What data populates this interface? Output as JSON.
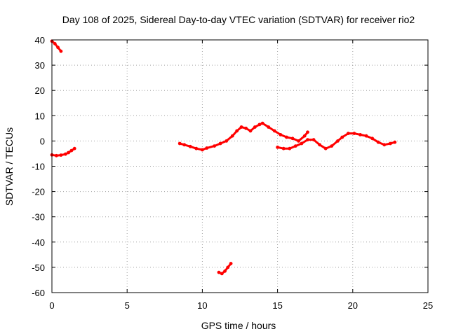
{
  "chart_data": {
    "type": "scatter",
    "title": "Day 108 of 2025, Sidereal Day-to-day VTEC variation (SDTVAR) for receiver rio2",
    "xlabel": "GPS time / hours",
    "ylabel": "SDTVAR / TECUs",
    "xlim": [
      0,
      25
    ],
    "ylim": [
      -60,
      40
    ],
    "x_ticks": [
      0,
      5,
      10,
      15,
      20,
      25
    ],
    "y_ticks": [
      40,
      30,
      20,
      10,
      0,
      -10,
      -20,
      -30,
      -40,
      -50,
      -60
    ],
    "grid": true,
    "series_color": "#ff0000",
    "series": [
      {
        "name": "segment-1",
        "points": [
          [
            0.0,
            39.5
          ],
          [
            0.2,
            38.5
          ],
          [
            0.4,
            37.0
          ],
          [
            0.6,
            35.5
          ]
        ]
      },
      {
        "name": "segment-2",
        "points": [
          [
            0.0,
            -5.5
          ],
          [
            0.3,
            -5.8
          ],
          [
            0.6,
            -5.6
          ],
          [
            0.9,
            -5.2
          ],
          [
            1.1,
            -4.6
          ],
          [
            1.3,
            -3.8
          ],
          [
            1.5,
            -3.0
          ]
        ]
      },
      {
        "name": "segment-3",
        "points": [
          [
            8.5,
            -1.0
          ],
          [
            8.8,
            -1.5
          ],
          [
            9.2,
            -2.2
          ],
          [
            9.6,
            -3.0
          ],
          [
            10.0,
            -3.5
          ],
          [
            10.3,
            -2.8
          ],
          [
            10.8,
            -2.0
          ],
          [
            11.2,
            -1.0
          ],
          [
            11.6,
            0.0
          ],
          [
            12.0,
            2.0
          ],
          [
            12.3,
            4.0
          ],
          [
            12.6,
            5.5
          ],
          [
            12.9,
            5.0
          ],
          [
            13.2,
            4.0
          ],
          [
            13.5,
            5.5
          ],
          [
            13.8,
            6.5
          ],
          [
            14.0,
            7.0
          ],
          [
            14.4,
            5.5
          ],
          [
            14.8,
            4.0
          ],
          [
            15.2,
            2.5
          ],
          [
            15.6,
            1.5
          ],
          [
            16.0,
            1.0
          ],
          [
            16.4,
            0.0
          ],
          [
            16.8,
            2.0
          ],
          [
            17.0,
            3.5
          ]
        ]
      },
      {
        "name": "segment-4",
        "points": [
          [
            15.0,
            -2.5
          ],
          [
            15.4,
            -3.0
          ],
          [
            15.8,
            -3.0
          ],
          [
            16.2,
            -2.0
          ],
          [
            16.6,
            -1.0
          ],
          [
            17.0,
            0.5
          ],
          [
            17.4,
            0.5
          ],
          [
            17.8,
            -1.5
          ],
          [
            18.2,
            -3.0
          ],
          [
            18.6,
            -2.0
          ],
          [
            19.0,
            0.0
          ],
          [
            19.3,
            1.5
          ],
          [
            19.7,
            3.0
          ],
          [
            20.1,
            3.0
          ],
          [
            20.5,
            2.5
          ],
          [
            20.9,
            2.0
          ],
          [
            21.3,
            1.0
          ],
          [
            21.7,
            -0.5
          ],
          [
            22.1,
            -1.5
          ],
          [
            22.5,
            -1.0
          ],
          [
            22.8,
            -0.5
          ]
        ]
      },
      {
        "name": "segment-5",
        "points": [
          [
            11.1,
            -52.0
          ],
          [
            11.3,
            -52.5
          ],
          [
            11.5,
            -51.5
          ],
          [
            11.7,
            -50.0
          ],
          [
            11.9,
            -48.5
          ]
        ]
      }
    ]
  }
}
